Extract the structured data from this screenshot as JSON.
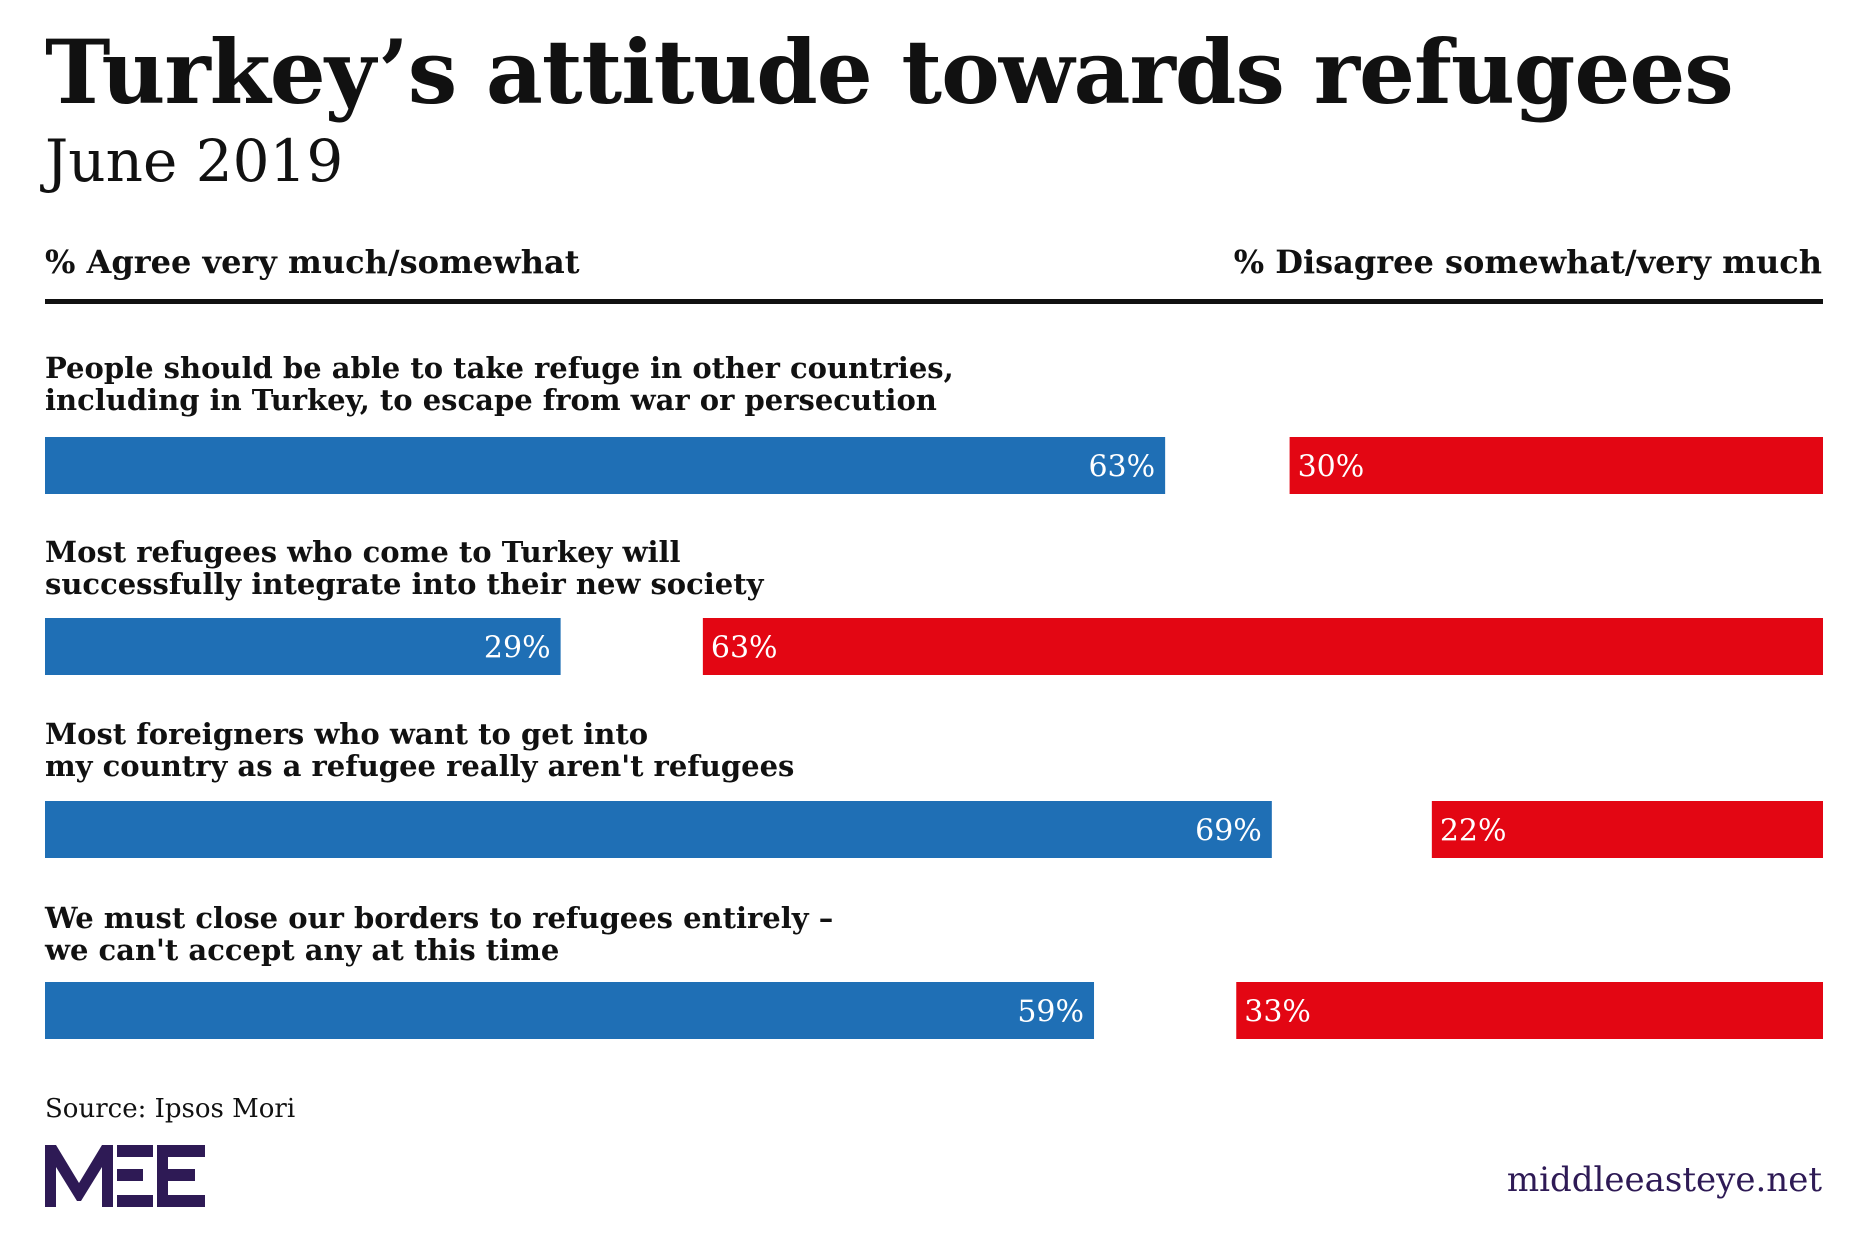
{
  "header": {
    "title": "Turkey’s attitude towards refugees",
    "subtitle": "June 2019"
  },
  "columns": {
    "agree": "% Agree very much/somewhat",
    "disagree": "% Disagree somewhat/very much"
  },
  "colors": {
    "agree": "#1f6fb5",
    "disagree": "#e30613",
    "brand": "#2e1a55"
  },
  "questions": [
    {
      "line1": "People should be able to take refuge in other countries,",
      "line2": "including in Turkey, to escape from war or persecution"
    },
    {
      "line1": "Most refugees who come to Turkey will",
      "line2": "successfully integrate into their new society"
    },
    {
      "line1": "Most foreigners who want to get into",
      "line2": "my country as a refugee really aren't refugees"
    },
    {
      "line1": "We must close our borders to refugees entirely –",
      "line2": "we can't accept any at this time"
    }
  ],
  "chart_data": {
    "type": "bar",
    "orientation": "horizontal-diverging",
    "title": "Turkey’s attitude towards refugees",
    "subtitle": "June 2019",
    "categories": [
      "People should be able to take refuge in other countries, including in Turkey, to escape from war or persecution",
      "Most refugees who come to Turkey will successfully integrate into their new society",
      "Most foreigners who want to get into my country as a refugee really aren't refugees",
      "We must close our borders to refugees entirely – we can't accept any at this time"
    ],
    "series": [
      {
        "name": "% Agree very much/somewhat",
        "values": [
          63,
          29,
          69,
          59
        ],
        "labels": [
          "63%",
          "29%",
          "69%",
          "59%"
        ],
        "anchor": "left"
      },
      {
        "name": "% Disagree somewhat/very much",
        "values": [
          30,
          63,
          22,
          33
        ],
        "labels": [
          "30%",
          "63%",
          "22%",
          "33%"
        ],
        "anchor": "right"
      }
    ],
    "xlim": [
      0,
      100
    ],
    "unit": "%"
  },
  "footer": {
    "source": "Source: Ipsos Mori",
    "logo_text": "MEE",
    "site": "middleeasteye.net"
  }
}
